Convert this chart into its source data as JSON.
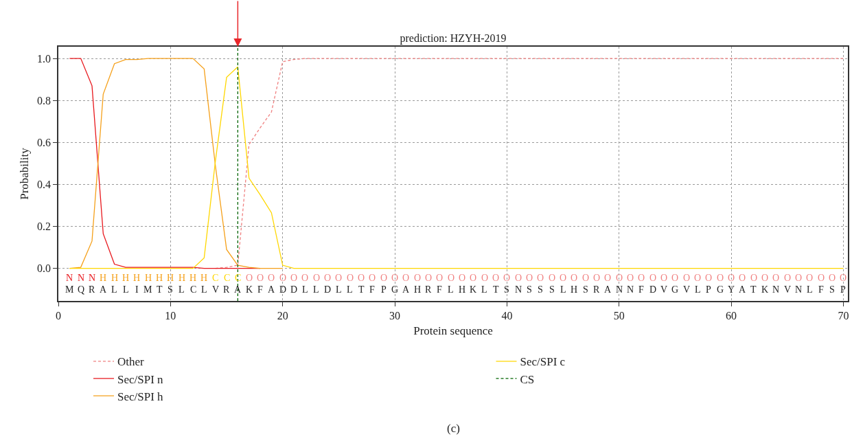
{
  "chart_data": {
    "type": "line",
    "title": "prediction: HZYH-2019",
    "xlabel": "Protein sequence",
    "ylabel": "Probability",
    "x": [
      1,
      2,
      3,
      4,
      5,
      6,
      7,
      8,
      9,
      10,
      11,
      12,
      13,
      14,
      15,
      16,
      17,
      18,
      19,
      20,
      21,
      22,
      23,
      24,
      25,
      26,
      27,
      28,
      29,
      30,
      31,
      32,
      33,
      34,
      35,
      36,
      37,
      38,
      39,
      40,
      41,
      42,
      43,
      44,
      45,
      46,
      47,
      48,
      49,
      50,
      51,
      52,
      53,
      54,
      55,
      56,
      57,
      58,
      59,
      60,
      61,
      62,
      63,
      64,
      65,
      66,
      67,
      68,
      69,
      70
    ],
    "series": [
      {
        "name": "Other",
        "color": "#f08080",
        "line_style": "dashed",
        "values": [
          null,
          null,
          null,
          null,
          null,
          null,
          null,
          null,
          null,
          null,
          null,
          null,
          null,
          0,
          0.005,
          0.015,
          0.59,
          0.67,
          0.745,
          0.985,
          0.995,
          1,
          1,
          1,
          1,
          1,
          1,
          1,
          1,
          1,
          1,
          1,
          1,
          1,
          1,
          1,
          1,
          1,
          1,
          1,
          1,
          1,
          1,
          1,
          1,
          1,
          1,
          1,
          1,
          1,
          1,
          1,
          1,
          1,
          1,
          1,
          1,
          1,
          1,
          1,
          1,
          1,
          1,
          1,
          1,
          1,
          1,
          1,
          1,
          1
        ]
      },
      {
        "name": "Sec/SPI n",
        "color": "#e8171c",
        "line_style": "solid",
        "values": [
          1,
          1,
          0.87,
          0.165,
          0.02,
          0.005,
          0.005,
          0.005,
          0.005,
          0.005,
          0.005,
          0.005,
          0,
          0,
          0,
          0,
          0,
          0,
          null,
          null,
          null,
          null,
          null,
          null,
          null,
          null,
          null,
          null,
          null,
          null,
          null,
          null,
          null,
          null,
          null,
          null,
          null,
          null,
          null,
          null,
          null,
          null,
          null,
          null,
          null,
          null,
          null,
          null,
          null,
          null,
          null,
          null,
          null,
          null,
          null,
          null,
          null,
          null,
          null,
          null,
          null,
          null,
          null,
          null,
          null,
          null,
          null,
          null,
          null,
          null
        ]
      },
      {
        "name": "Sec/SPI h",
        "color": "#f5a01a",
        "line_style": "solid",
        "values": [
          0,
          0.005,
          0.13,
          0.83,
          0.975,
          0.995,
          0.995,
          1,
          1,
          1,
          1,
          1,
          0.95,
          0.49,
          0.09,
          0.015,
          0.005,
          0,
          0,
          0,
          null,
          null,
          null,
          null,
          null,
          null,
          null,
          null,
          null,
          null,
          null,
          null,
          null,
          null,
          null,
          null,
          null,
          null,
          null,
          null,
          null,
          null,
          null,
          null,
          null,
          null,
          null,
          null,
          null,
          null,
          null,
          null,
          null,
          null,
          null,
          null,
          null,
          null,
          null,
          null,
          null,
          null,
          null,
          null,
          null,
          null,
          null,
          null,
          null,
          null
        ]
      },
      {
        "name": "Sec/SPI c",
        "color": "#ffd700",
        "line_style": "solid",
        "values": [
          0,
          0,
          0,
          0,
          0,
          0,
          0,
          0,
          0,
          0,
          0,
          0,
          0.05,
          0.51,
          0.91,
          0.96,
          0.43,
          0.35,
          0.265,
          0.015,
          0,
          0,
          0,
          0,
          0,
          0,
          0,
          0,
          0,
          0,
          0,
          0,
          0,
          0,
          0,
          0,
          0,
          0,
          0,
          0,
          0,
          0,
          0,
          0,
          0,
          0,
          0,
          0,
          0,
          0,
          0,
          0,
          0,
          0,
          0,
          0,
          0,
          0,
          0,
          0,
          0,
          0,
          0,
          0,
          0,
          0,
          0,
          0,
          0,
          0
        ]
      }
    ],
    "ref_lines": [
      {
        "axis": "x",
        "value": 16,
        "label": "CS",
        "color": "#006400",
        "line_style": "dashed"
      }
    ],
    "xlim": [
      0,
      70.4
    ],
    "xticks": [
      0,
      10,
      20,
      30,
      40,
      50,
      60,
      70
    ],
    "ylim": [
      -0.155,
      1.056
    ],
    "yticks": [
      {
        "value": 0,
        "label": "0.0"
      },
      {
        "value": 0.2,
        "label": "0.2"
      },
      {
        "value": 0.4,
        "label": "0.4"
      },
      {
        "value": 0.6,
        "label": "0.6"
      },
      {
        "value": 0.8,
        "label": "0.8"
      },
      {
        "value": 1,
        "label": "1.0"
      }
    ],
    "grid": true,
    "legend": "bottom",
    "marker": "none",
    "annotations": [
      "N",
      "N",
      "N",
      "H",
      "H",
      "H",
      "H",
      "H",
      "H",
      "H",
      "H",
      "H",
      "H",
      "C",
      "C",
      "C",
      "O",
      "O",
      "O",
      "O",
      "O",
      "O",
      "O",
      "O",
      "O",
      "O",
      "O",
      "O",
      "O",
      "O",
      "O",
      "O",
      "O",
      "O",
      "O",
      "O",
      "O",
      "O",
      "O",
      "O",
      "O",
      "O",
      "O",
      "O",
      "O",
      "O",
      "O",
      "O",
      "O",
      "O",
      "O",
      "O",
      "O",
      "O",
      "O",
      "O",
      "O",
      "O",
      "O",
      "O",
      "O",
      "O",
      "O",
      "O",
      "O",
      "O",
      "O",
      "O",
      "O",
      "O",
      "M",
      "Q",
      "R",
      "A",
      "L",
      "L",
      "I",
      "M",
      "T",
      "S",
      "L",
      "C",
      "L",
      "V",
      "R",
      "A",
      "K",
      "F",
      "A",
      "D",
      "D",
      "L",
      "L",
      "D",
      "L",
      "L",
      "T",
      "F",
      "P",
      "G",
      "A",
      "H",
      "R",
      "F",
      "L",
      "H",
      "K",
      "L",
      "T",
      "S",
      "N",
      "S",
      "S",
      "S",
      "L",
      "H",
      "S",
      "R",
      "A",
      "N",
      "N",
      "F",
      "D",
      "V",
      "G",
      "V",
      "L",
      "P",
      "G",
      "Y",
      "A",
      "T",
      "K",
      "N",
      "V",
      "N",
      "L",
      "F",
      "S",
      "P",
      "(c)"
    ]
  }
}
